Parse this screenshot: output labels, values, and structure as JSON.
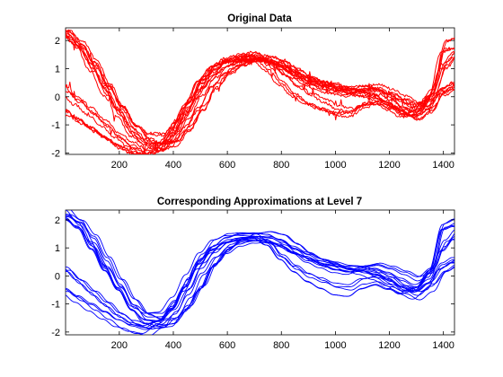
{
  "chart_data": [
    {
      "type": "line",
      "title": "Original Data",
      "xlabel": "",
      "ylabel": "",
      "xlim": [
        1,
        1441
      ],
      "ylim": [
        -2.05,
        2.45
      ],
      "xticks": [
        200,
        400,
        600,
        800,
        1000,
        1200,
        1400
      ],
      "yticks": [
        -2,
        -1,
        0,
        1,
        2
      ],
      "xtick_labels": [
        "200",
        "400",
        "600",
        "800",
        "1000",
        "1200",
        "1400"
      ],
      "ytick_labels": [
        "-2",
        "-1",
        "0",
        "1",
        "2"
      ],
      "color": "#ff0000",
      "grid": false,
      "noisy": true,
      "series_groups": [
        {
          "count": 5,
          "x": [
            1,
            50,
            100,
            150,
            200,
            250,
            300,
            350,
            400,
            450,
            500,
            550,
            600,
            650,
            700,
            750,
            800,
            850,
            900,
            950,
            1000,
            1050,
            1100,
            1150,
            1200,
            1250,
            1300,
            1350,
            1400,
            1441
          ],
          "y": [
            2.3,
            1.8,
            1.0,
            0.2,
            -0.5,
            -1.2,
            -1.5,
            -1.5,
            -1.0,
            -0.2,
            0.6,
            1.1,
            1.3,
            1.35,
            1.4,
            1.1,
            0.6,
            0.2,
            -0.1,
            -0.3,
            -0.5,
            -0.55,
            -0.3,
            -0.2,
            -0.4,
            -0.6,
            -0.5,
            0.1,
            1.8,
            1.9
          ],
          "spread": 0.18
        },
        {
          "count": 5,
          "x": [
            1,
            50,
            100,
            150,
            200,
            250,
            300,
            350,
            400,
            450,
            500,
            550,
            600,
            650,
            700,
            750,
            800,
            850,
            900,
            950,
            1000,
            1050,
            1100,
            1150,
            1200,
            1250,
            1300,
            1350,
            1400,
            1441
          ],
          "y": [
            2.2,
            1.9,
            1.3,
            0.5,
            -0.3,
            -1.0,
            -1.5,
            -1.7,
            -1.6,
            -1.1,
            -0.4,
            0.4,
            0.9,
            1.2,
            1.4,
            1.45,
            1.3,
            1.0,
            0.7,
            0.5,
            0.3,
            0.2,
            0.3,
            0.35,
            0.2,
            0.0,
            -0.2,
            0.1,
            1.2,
            1.6
          ],
          "spread": 0.15
        },
        {
          "count": 4,
          "x": [
            1,
            50,
            100,
            150,
            200,
            250,
            300,
            350,
            400,
            450,
            500,
            550,
            600,
            650,
            700,
            750,
            800,
            850,
            900,
            950,
            1000,
            1050,
            1100,
            1150,
            1200,
            1250,
            1300,
            1350,
            1400,
            1441
          ],
          "y": [
            0.2,
            -0.2,
            -0.6,
            -1.0,
            -1.4,
            -1.7,
            -1.9,
            -1.8,
            -1.4,
            -0.7,
            0.1,
            0.7,
            1.1,
            1.3,
            1.4,
            1.3,
            1.1,
            0.8,
            0.6,
            0.4,
            0.3,
            0.2,
            0.2,
            0.1,
            -0.1,
            -0.4,
            -0.6,
            -0.3,
            0.2,
            0.4
          ],
          "spread": 0.14
        },
        {
          "count": 4,
          "x": [
            1,
            50,
            100,
            150,
            200,
            250,
            300,
            350,
            400,
            450,
            500,
            550,
            600,
            650,
            700,
            750,
            800,
            850,
            900,
            950,
            1000,
            1050,
            1100,
            1150,
            1200,
            1250,
            1300,
            1350,
            1400,
            1441
          ],
          "y": [
            -0.5,
            -0.8,
            -1.1,
            -1.4,
            -1.7,
            -1.95,
            -2.05,
            -1.8,
            -1.2,
            -0.4,
            0.5,
            1.0,
            1.3,
            1.4,
            1.45,
            1.35,
            1.15,
            0.9,
            0.7,
            0.5,
            0.4,
            0.25,
            0.15,
            0.0,
            -0.2,
            -0.5,
            -0.7,
            -0.4,
            0.3,
            0.5
          ],
          "spread": 0.12
        }
      ]
    },
    {
      "type": "line",
      "title": "Corresponding Approximations at Level 7",
      "xlabel": "",
      "ylabel": "",
      "xlim": [
        1,
        1441
      ],
      "ylim": [
        -2.1,
        2.35
      ],
      "xticks": [
        200,
        400,
        600,
        800,
        1000,
        1200,
        1400
      ],
      "yticks": [
        -2,
        -1,
        0,
        1,
        2
      ],
      "xtick_labels": [
        "200",
        "400",
        "600",
        "800",
        "1000",
        "1200",
        "1400"
      ],
      "ytick_labels": [
        "-2",
        "-1",
        "0",
        "1",
        "2"
      ],
      "color": "#0000ff",
      "grid": false,
      "noisy": false,
      "series_groups": [
        {
          "count": 5,
          "x": [
            1,
            50,
            100,
            150,
            200,
            250,
            300,
            350,
            400,
            450,
            500,
            550,
            600,
            650,
            700,
            750,
            800,
            850,
            900,
            950,
            1000,
            1050,
            1100,
            1150,
            1200,
            1250,
            1300,
            1350,
            1400,
            1441
          ],
          "y": [
            2.2,
            1.8,
            1.0,
            0.2,
            -0.5,
            -1.2,
            -1.5,
            -1.5,
            -1.0,
            -0.2,
            0.6,
            1.1,
            1.3,
            1.35,
            1.35,
            1.1,
            0.6,
            0.2,
            -0.1,
            -0.3,
            -0.5,
            -0.55,
            -0.3,
            -0.2,
            -0.4,
            -0.6,
            -0.5,
            0.1,
            1.7,
            1.85
          ],
          "spread": 0.18
        },
        {
          "count": 5,
          "x": [
            1,
            50,
            100,
            150,
            200,
            250,
            300,
            350,
            400,
            450,
            500,
            550,
            600,
            650,
            700,
            750,
            800,
            850,
            900,
            950,
            1000,
            1050,
            1100,
            1150,
            1200,
            1250,
            1300,
            1350,
            1400,
            1441
          ],
          "y": [
            2.1,
            1.85,
            1.3,
            0.5,
            -0.3,
            -1.0,
            -1.5,
            -1.65,
            -1.6,
            -1.1,
            -0.4,
            0.4,
            0.9,
            1.2,
            1.35,
            1.4,
            1.3,
            1.0,
            0.7,
            0.5,
            0.3,
            0.2,
            0.3,
            0.35,
            0.2,
            0.0,
            -0.2,
            0.1,
            1.1,
            1.5
          ],
          "spread": 0.15
        },
        {
          "count": 4,
          "x": [
            1,
            50,
            100,
            150,
            200,
            250,
            300,
            350,
            400,
            450,
            500,
            550,
            600,
            650,
            700,
            750,
            800,
            850,
            900,
            950,
            1000,
            1050,
            1100,
            1150,
            1200,
            1250,
            1300,
            1350,
            1400,
            1441
          ],
          "y": [
            0.2,
            -0.2,
            -0.6,
            -1.0,
            -1.4,
            -1.7,
            -1.85,
            -1.75,
            -1.4,
            -0.7,
            0.1,
            0.7,
            1.1,
            1.3,
            1.35,
            1.3,
            1.1,
            0.8,
            0.6,
            0.4,
            0.3,
            0.2,
            0.2,
            0.1,
            -0.1,
            -0.4,
            -0.6,
            -0.3,
            0.2,
            0.4
          ],
          "spread": 0.14
        },
        {
          "count": 4,
          "x": [
            1,
            50,
            100,
            150,
            200,
            250,
            300,
            350,
            400,
            450,
            500,
            550,
            600,
            650,
            700,
            750,
            800,
            850,
            900,
            950,
            1000,
            1050,
            1100,
            1150,
            1200,
            1250,
            1300,
            1350,
            1400,
            1441
          ],
          "y": [
            -0.5,
            -0.8,
            -1.1,
            -1.4,
            -1.7,
            -1.9,
            -2.0,
            -1.75,
            -1.2,
            -0.4,
            0.5,
            1.0,
            1.3,
            1.4,
            1.4,
            1.35,
            1.15,
            0.9,
            0.7,
            0.5,
            0.4,
            0.25,
            0.15,
            0.0,
            -0.2,
            -0.5,
            -0.7,
            -0.4,
            0.3,
            0.5
          ],
          "spread": 0.12
        }
      ]
    }
  ]
}
